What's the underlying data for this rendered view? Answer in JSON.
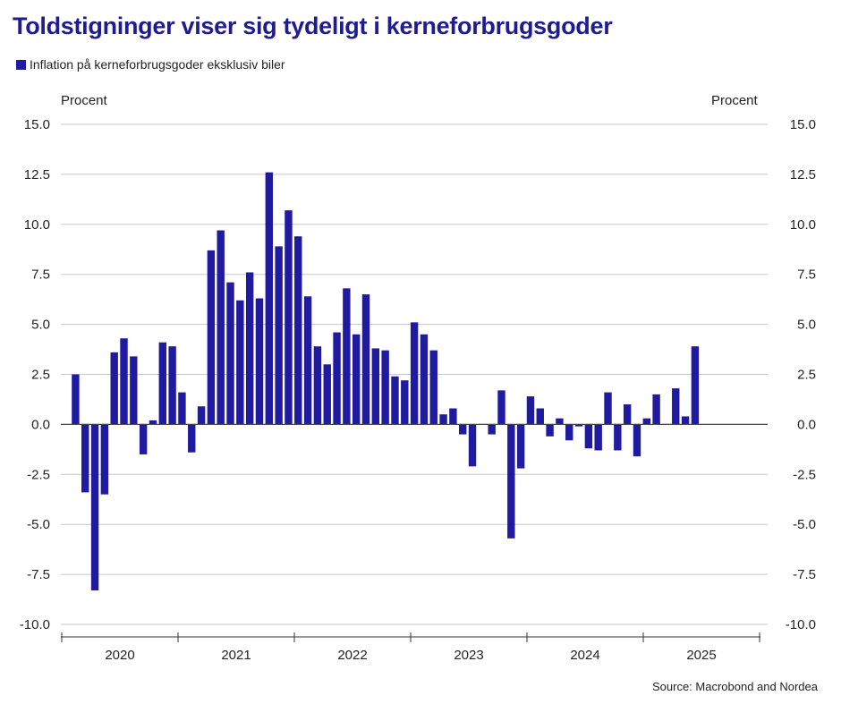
{
  "title": "Toldstigninger viser sig tydeligt i kerneforbrugsgoder",
  "legend": {
    "label": "Inflation på kerneforbrugsgoder eksklusiv biler"
  },
  "axis_unit_left": "Procent",
  "axis_unit_right": "Procent",
  "source": "Source: Macrobond and Nordea",
  "colors": {
    "bar": "#1f1aa0",
    "title": "#1f1c8f",
    "grid": "#c8c8c8",
    "axis": "#333333"
  },
  "chart_data": {
    "type": "bar",
    "title": "Toldstigninger viser sig tydeligt i kerneforbrugsgoder",
    "ylabel": "Procent",
    "ylim": [
      -10,
      15
    ],
    "yticks": [
      "15.0",
      "12.5",
      "10.0",
      "7.5",
      "5.0",
      "2.5",
      "0.0",
      "-2.5",
      "-5.0",
      "-7.5",
      "-10.0"
    ],
    "ytick_values": [
      15,
      12.5,
      10,
      7.5,
      5,
      2.5,
      0,
      -2.5,
      -5,
      -7.5,
      -10
    ],
    "x_year_labels": [
      "2020",
      "2021",
      "2022",
      "2023",
      "2024",
      "2025"
    ],
    "grid": "horizontal",
    "series": [
      {
        "name": "Inflation på kerneforbrugsgoder eksklusiv biler",
        "x": [
          "2019-12",
          "2020-01",
          "2020-02",
          "2020-03",
          "2020-04",
          "2020-05",
          "2020-06",
          "2020-07",
          "2020-08",
          "2020-09",
          "2020-10",
          "2020-11",
          "2020-12",
          "2021-01",
          "2021-02",
          "2021-03",
          "2021-04",
          "2021-05",
          "2021-06",
          "2021-07",
          "2021-08",
          "2021-09",
          "2021-10",
          "2021-11",
          "2021-12",
          "2022-01",
          "2022-02",
          "2022-03",
          "2022-04",
          "2022-05",
          "2022-06",
          "2022-07",
          "2022-08",
          "2022-09",
          "2022-10",
          "2022-11",
          "2022-12",
          "2023-01",
          "2023-02",
          "2023-03",
          "2023-04",
          "2023-05",
          "2023-06",
          "2023-07",
          "2023-08",
          "2023-09",
          "2023-10",
          "2023-11",
          "2023-12",
          "2024-01",
          "2024-02",
          "2024-03",
          "2024-04",
          "2024-05",
          "2024-06",
          "2024-07",
          "2024-08",
          "2024-09",
          "2024-10",
          "2024-11",
          "2024-12",
          "2025-01",
          "2025-02",
          "2025-03",
          "2025-04"
        ],
        "values": [
          2.5,
          -3.4,
          -8.3,
          -3.5,
          3.6,
          4.3,
          3.4,
          -1.5,
          0.2,
          4.1,
          3.9,
          1.6,
          -1.4,
          0.9,
          8.7,
          9.7,
          7.1,
          6.2,
          7.6,
          6.3,
          12.6,
          8.9,
          10.7,
          9.4,
          6.4,
          3.9,
          3.0,
          4.6,
          6.8,
          4.5,
          6.5,
          3.8,
          3.7,
          2.4,
          2.2,
          5.1,
          4.5,
          3.7,
          0.5,
          0.8,
          -0.5,
          -2.1,
          0.0,
          -0.5,
          1.7,
          -5.7,
          -2.2,
          1.4,
          0.8,
          -0.6,
          0.3,
          -0.8,
          -0.1,
          -1.2,
          -1.3,
          1.6,
          -1.3,
          1.0,
          -1.6,
          0.3,
          1.5,
          0.0,
          1.8,
          0.4,
          3.9
        ]
      }
    ]
  }
}
